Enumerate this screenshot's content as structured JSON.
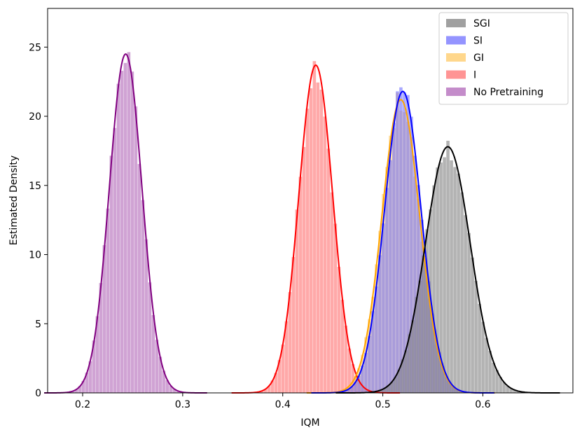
{
  "chart_data": {
    "type": "histogram",
    "xlabel": "IQM",
    "ylabel": "Estimated Density",
    "xlim": [
      0.165,
      0.69
    ],
    "ylim": [
      0,
      27.8
    ],
    "xticks": [
      0.2,
      0.3,
      0.4,
      0.5,
      0.6
    ],
    "xtick_labels": [
      "0.2",
      "0.3",
      "0.4",
      "0.5",
      "0.6"
    ],
    "yticks": [
      0,
      5,
      10,
      15,
      20,
      25
    ],
    "ytick_labels": [
      "0",
      "5",
      "10",
      "15",
      "20",
      "25"
    ],
    "legend_position": "top-right",
    "series": [
      {
        "name": "SGI",
        "mean": 0.565,
        "peak_density": 17.8,
        "bar_color": "#808080",
        "line_color": "#000000",
        "range": [
          0.49,
          0.67
        ]
      },
      {
        "name": "SI",
        "mean": 0.52,
        "peak_density": 21.8,
        "bar_color": "#7070ff",
        "line_color": "#0000ff",
        "range": [
          0.45,
          0.6
        ]
      },
      {
        "name": "GI",
        "mean": 0.518,
        "peak_density": 21.2,
        "bar_color": "#ffc966",
        "line_color": "#ffa500",
        "range": [
          0.45,
          0.6
        ]
      },
      {
        "name": "I",
        "mean": 0.433,
        "peak_density": 23.7,
        "bar_color": "#ff7070",
        "line_color": "#ff0000",
        "range": [
          0.36,
          0.51
        ]
      },
      {
        "name": "No Pretraining",
        "mean": 0.243,
        "peak_density": 24.5,
        "bar_color": "#b066b8",
        "line_color": "#800080",
        "range": [
          0.185,
          0.33
        ]
      }
    ]
  }
}
